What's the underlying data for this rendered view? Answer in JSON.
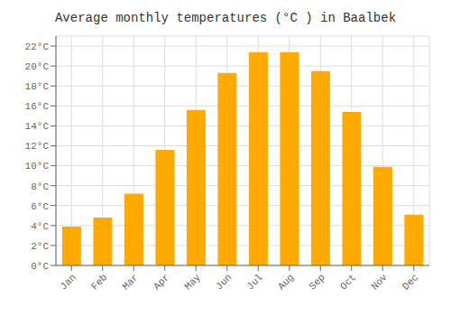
{
  "chart_data": {
    "type": "bar",
    "title": "Average monthly temperatures (°C ) in Baalbek",
    "categories": [
      "Jan",
      "Feb",
      "Mar",
      "Apr",
      "May",
      "Jun",
      "Jul",
      "Aug",
      "Sep",
      "Oct",
      "Nov",
      "Dec"
    ],
    "values": [
      3.9,
      4.8,
      7.2,
      11.6,
      15.6,
      19.3,
      21.4,
      21.4,
      19.5,
      15.4,
      9.9,
      5.1
    ],
    "color": "#FFAA00",
    "ylim": [
      0,
      23
    ],
    "yticks": [
      {
        "value": 0,
        "label": "0°C"
      },
      {
        "value": 2,
        "label": "2°C"
      },
      {
        "value": 4,
        "label": "4°C"
      },
      {
        "value": 6,
        "label": "6°C"
      },
      {
        "value": 8,
        "label": "8°C"
      },
      {
        "value": 10,
        "label": "10°C"
      },
      {
        "value": 12,
        "label": "12°C"
      },
      {
        "value": 14,
        "label": "14°C"
      },
      {
        "value": 16,
        "label": "16°C"
      },
      {
        "value": 18,
        "label": "18°C"
      },
      {
        "value": 20,
        "label": "20°C"
      },
      {
        "value": 22,
        "label": "22°C"
      }
    ],
    "grid": true
  }
}
